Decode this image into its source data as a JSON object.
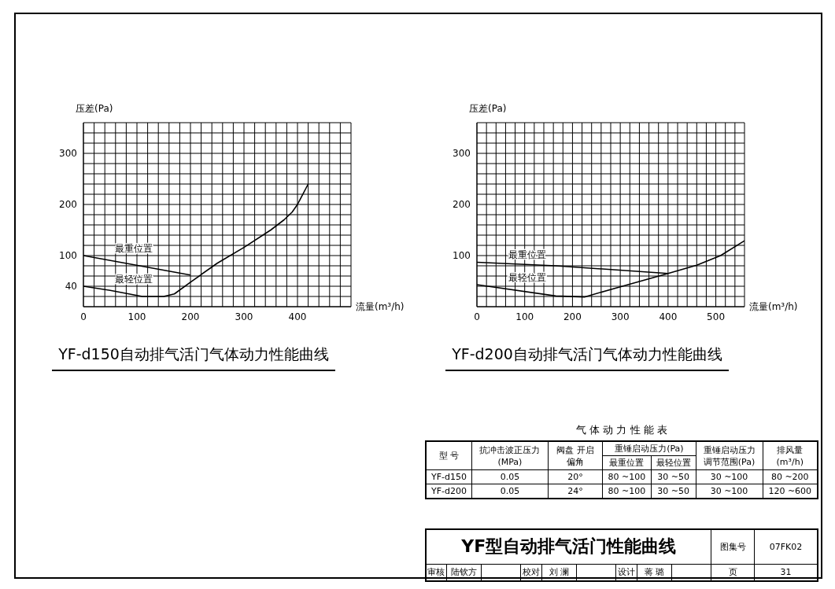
{
  "chart_data": [
    {
      "type": "line",
      "title": "YF-d150自动排气活门气体动力性能曲线",
      "xlabel": "流量(m³/h)",
      "ylabel": "压差(Pa)",
      "xlim": [
        0,
        500
      ],
      "ylim": [
        0,
        360
      ],
      "xticks": [
        0,
        {
          "value": 20,
          "label": null
        },
        {
          "value": 40,
          "label": null
        },
        {
          "value": 60,
          "label": null
        },
        {
          "value": 80,
          "label": null
        },
        100,
        {
          "value": 120,
          "label": null
        },
        {
          "value": 140,
          "label": null
        },
        {
          "value": 160,
          "label": null
        },
        {
          "value": 180,
          "label": null
        },
        200,
        {
          "value": 220,
          "label": null
        },
        {
          "value": 240,
          "label": null
        },
        {
          "value": 260,
          "label": null
        },
        {
          "value": 280,
          "label": null
        },
        300,
        {
          "value": 320,
          "label": null
        },
        {
          "value": 340,
          "label": null
        },
        {
          "value": 360,
          "label": null
        },
        {
          "value": 380,
          "label": null
        },
        400,
        {
          "value": 420,
          "label": null
        },
        {
          "value": 440,
          "label": null
        },
        {
          "value": 460,
          "label": null
        },
        {
          "value": 480,
          "label": null
        },
        {
          "value": 500,
          "label": null
        }
      ],
      "yticks": [
        {
          "value": 0,
          "label": null
        },
        {
          "value": 20,
          "label": null
        },
        40,
        {
          "value": 60,
          "label": null
        },
        {
          "value": 80,
          "label": null
        },
        100,
        {
          "value": 120,
          "label": null
        },
        {
          "value": 140,
          "label": null
        },
        {
          "value": 160,
          "label": null
        },
        {
          "value": 180,
          "label": null
        },
        200,
        {
          "value": 220,
          "label": null
        },
        {
          "value": 240,
          "label": null
        },
        {
          "value": 260,
          "label": null
        },
        {
          "value": 280,
          "label": null
        },
        300,
        {
          "value": 320,
          "label": null
        },
        {
          "value": 340,
          "label": null
        },
        {
          "value": 360,
          "label": null
        }
      ],
      "grid": true,
      "legend": false,
      "marker": "none",
      "line_style": "solid",
      "series": [
        {
          "name": "最重位置",
          "color": "#000000",
          "x": [
            0,
            200
          ],
          "values": [
            100,
            62
          ]
        },
        {
          "name": "最轻位置",
          "color": "#000000",
          "x": [
            0,
            50,
            110,
            150,
            170,
            200,
            250,
            300,
            350,
            375,
            390,
            400,
            420
          ],
          "values": [
            40,
            32,
            20,
            20,
            25,
            48,
            85,
            116,
            150,
            170,
            185,
            200,
            240
          ]
        }
      ]
    },
    {
      "type": "line",
      "title": "YF-d200自动排气活门气体动力性能曲线",
      "xlabel": "流量(m³/h)",
      "ylabel": "压差(Pa)",
      "xlim": [
        0,
        560
      ],
      "ylim": [
        0,
        360
      ],
      "xticks": [
        0,
        {
          "value": 20,
          "label": null
        },
        {
          "value": 40,
          "label": null
        },
        {
          "value": 60,
          "label": null
        },
        {
          "value": 80,
          "label": null
        },
        100,
        {
          "value": 120,
          "label": null
        },
        {
          "value": 140,
          "label": null
        },
        {
          "value": 160,
          "label": null
        },
        {
          "value": 180,
          "label": null
        },
        200,
        {
          "value": 220,
          "label": null
        },
        {
          "value": 240,
          "label": null
        },
        {
          "value": 260,
          "label": null
        },
        {
          "value": 280,
          "label": null
        },
        300,
        {
          "value": 320,
          "label": null
        },
        {
          "value": 340,
          "label": null
        },
        {
          "value": 360,
          "label": null
        },
        {
          "value": 380,
          "label": null
        },
        400,
        {
          "value": 420,
          "label": null
        },
        {
          "value": 440,
          "label": null
        },
        {
          "value": 460,
          "label": null
        },
        {
          "value": 480,
          "label": null
        },
        500,
        {
          "value": 520,
          "label": null
        },
        {
          "value": 540,
          "label": null
        },
        {
          "value": 560,
          "label": null
        }
      ],
      "yticks": [
        {
          "value": 0,
          "label": null
        },
        {
          "value": 20,
          "label": null
        },
        {
          "value": 40,
          "label": null
        },
        {
          "value": 60,
          "label": null
        },
        {
          "value": 80,
          "label": null
        },
        100,
        {
          "value": 120,
          "label": null
        },
        {
          "value": 140,
          "label": null
        },
        {
          "value": 160,
          "label": null
        },
        {
          "value": 180,
          "label": null
        },
        200,
        {
          "value": 220,
          "label": null
        },
        {
          "value": 240,
          "label": null
        },
        {
          "value": 260,
          "label": null
        },
        {
          "value": 280,
          "label": null
        },
        300,
        {
          "value": 320,
          "label": null
        },
        {
          "value": 340,
          "label": null
        },
        {
          "value": 360,
          "label": null
        }
      ],
      "grid": true,
      "legend": false,
      "marker": "none",
      "line_style": "solid",
      "series": [
        {
          "name": "最重位置",
          "color": "#000000",
          "x": [
            0,
            165,
            400
          ],
          "values": [
            87,
            80,
            65
          ]
        },
        {
          "name": "最轻位置",
          "color": "#000000",
          "x": [
            0,
            165,
            225,
            300,
            400,
            460,
            510,
            560
          ],
          "values": [
            43,
            21,
            19,
            39,
            65,
            81,
            100,
            129
          ]
        }
      ]
    },
    {
      "type": "other",
      "title": "气 体 动 力 性 能 表",
      "annotations": [
        "型 号",
        "抗冲击波正压力(MPa)",
        "阀盘 开启偏角",
        "重锤启动压力(Pa)",
        "重锤启动压力调节范围(Pa)",
        "排风量(m³/h)",
        "最重位置",
        "最轻位置",
        "YF-d150",
        "0.05",
        "20°",
        "80 ~100",
        "30 ~50",
        "30 ~100",
        "80 ~200",
        "YF-d200",
        "0.05",
        "24°",
        "80 ~100",
        "30 ~50",
        "30 ~100",
        "120 ~600"
      ]
    },
    {
      "type": "other",
      "title": "YF型自动排气活门性能曲线",
      "annotations": [
        "图集号",
        "07FK02",
        "审核",
        "陆钦方",
        "校对",
        "刘 澜",
        "设计",
        "蒋 璐",
        "页",
        "31"
      ]
    }
  ]
}
